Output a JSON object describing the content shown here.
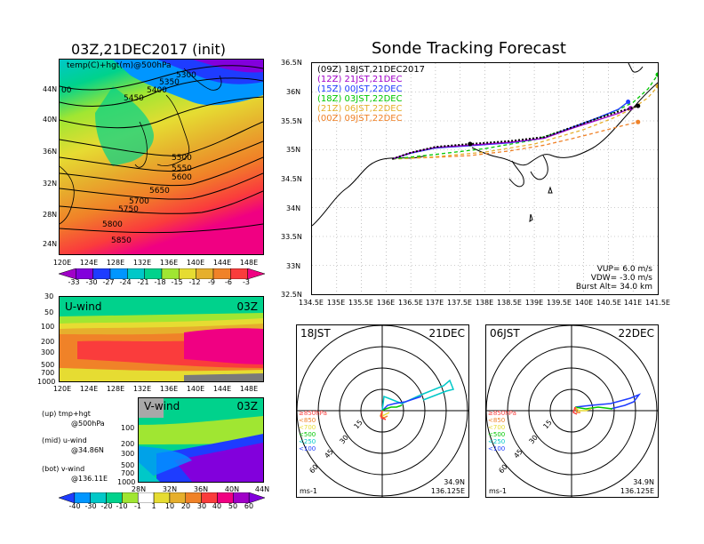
{
  "temp_panel": {
    "title": "03Z,21DEC2017 (init)",
    "subtitle": "temp(C)+hgt(m)@500hPa",
    "lat_labels": [
      "44N",
      "40N",
      "36N",
      "32N",
      "28N",
      "24N"
    ],
    "lon_labels": [
      "120E",
      "124E",
      "128E",
      "132E",
      "136E",
      "140E",
      "144E",
      "148E"
    ],
    "contours": [
      {
        "label": "5300"
      },
      {
        "label": "5350"
      },
      {
        "label": "5400"
      },
      {
        "label": "5450"
      },
      {
        "label": "5500"
      },
      {
        "label": "5550"
      },
      {
        "label": "5600"
      },
      {
        "label": "5650"
      },
      {
        "label": "5700"
      },
      {
        "label": "5750"
      },
      {
        "label": "5800"
      },
      {
        "label": "5850"
      }
    ],
    "edge_label": "00",
    "colorbar": {
      "labels": [
        "-33",
        "-30",
        "-27",
        "-24",
        "-21",
        "-18",
        "-15",
        "-12",
        "-9",
        "-6",
        "-3"
      ],
      "colors": [
        "#a000c8",
        "#8200dc",
        "#1e3cff",
        "#0096ff",
        "#00c8c8",
        "#00d28c",
        "#a0e632",
        "#e6dc32",
        "#e6af2d",
        "#f08228",
        "#fa3c3c",
        "#f00082"
      ]
    }
  },
  "uwind_panel": {
    "title": "U-wind",
    "time": "03Z",
    "p_labels": [
      "30",
      "50",
      "100",
      "200",
      "300",
      "500",
      "700",
      "1000"
    ],
    "lon_labels": [
      "120E",
      "124E",
      "128E",
      "132E",
      "136E",
      "140E",
      "144E",
      "148E"
    ]
  },
  "vwind_panel": {
    "title": "V-wind",
    "time": "03Z",
    "p_labels": [
      "100",
      "200",
      "300",
      "500",
      "700",
      "1000"
    ],
    "lat_labels": [
      "28N",
      "32N",
      "36N",
      "40N",
      "44N"
    ],
    "colorbar": {
      "labels": [
        "-40",
        "-30",
        "-20",
        "-10",
        "-1",
        "1",
        "10",
        "20",
        "30",
        "40",
        "50",
        "60"
      ],
      "colors": [
        "#1e3cff",
        "#0096ff",
        "#00c8c8",
        "#00d28c",
        "#a0e632",
        "#ffffff",
        "#e6dc32",
        "#e6af2d",
        "#f08228",
        "#fa3c3c",
        "#f00082",
        "#a000c8",
        "#8200dc"
      ]
    }
  },
  "legend_notes": [
    {
      "line1": "(up) tmp+hgt",
      "line2": "@500hPa"
    },
    {
      "line1": "(mid) u-wind",
      "line2": "@34.86N"
    },
    {
      "line1": "(bot) v-wind",
      "line2": "@136.11E"
    }
  ],
  "tracking": {
    "title": "Sonde Tracking Forecast",
    "lat_labels": [
      "36.5N",
      "36N",
      "35.5N",
      "35N",
      "34.5N",
      "34N",
      "33.5N",
      "33N",
      "32.5N"
    ],
    "lon_labels": [
      "134.5E",
      "135E",
      "135.5E",
      "136E",
      "136.5E",
      "137E",
      "137.5E",
      "138E",
      "138.5E",
      "139E",
      "139.5E",
      "140E",
      "140.5E",
      "141E",
      "141.5E"
    ],
    "runs": [
      {
        "label": "(09Z)  18JST,21DEC2017",
        "color": "#000000"
      },
      {
        "label": "(12Z)  21JST,21DEC",
        "color": "#a000c8"
      },
      {
        "label": "(15Z)  00JST,22DEC",
        "color": "#1e3cff"
      },
      {
        "label": "(18Z)  03JST,22DEC",
        "color": "#00c800"
      },
      {
        "label": "(21Z)  06JST,22DEC",
        "color": "#e6af2d"
      },
      {
        "label": "(00Z)  09JST,22DEC",
        "color": "#f08228"
      }
    ],
    "vup": "VUP=  6.0  m/s",
    "vdw": "VDW= -3.0  m/s",
    "burst": "Burst Alt=  34.0  km"
  },
  "polar_panels": [
    {
      "time": "18JST",
      "date": "21DEC",
      "unit": "ms-1",
      "lat": "34.9N",
      "lon": "136.125E",
      "ring_labels": [
        "15",
        "30",
        "45",
        "60"
      ]
    },
    {
      "time": "06JST",
      "date": "22DEC",
      "unit": "ms-1",
      "lat": "34.9N",
      "lon": "136.125E",
      "ring_labels": [
        "15",
        "30",
        "45",
        "60"
      ]
    }
  ],
  "polar_legend": [
    {
      "label": "≥850hPa",
      "color": "#fa3c3c"
    },
    {
      "label": "<850",
      "color": "#f08228"
    },
    {
      "label": "<700",
      "color": "#e6dc32"
    },
    {
      "label": "<500",
      "color": "#00c800"
    },
    {
      "label": "<250",
      "color": "#00c8c8"
    },
    {
      "label": "<100",
      "color": "#1e3cff"
    }
  ],
  "chart_data": [
    {
      "type": "heatmap",
      "title": "03Z,21DEC2017 (init)",
      "subtitle": "temp(C)+hgt(m)@500hPa",
      "xlim": [
        120,
        150
      ],
      "ylim": [
        22,
        47
      ],
      "contour_levels": [
        5300,
        5350,
        5400,
        5450,
        5500,
        5550,
        5600,
        5650,
        5700,
        5750,
        5800,
        5850
      ],
      "color_levels": [
        -33,
        -30,
        -27,
        -24,
        -21,
        -18,
        -15,
        -12,
        -9,
        -6,
        -3
      ]
    },
    {
      "type": "heatmap",
      "title": "U-wind",
      "xlim": [
        120,
        150
      ],
      "ylim": [
        1000,
        30
      ]
    },
    {
      "type": "heatmap",
      "title": "V-wind",
      "xlim": [
        28,
        44
      ],
      "ylim": [
        1000,
        100
      ],
      "color_levels": [
        -40,
        -30,
        -20,
        -10,
        -1,
        1,
        10,
        20,
        30,
        40,
        50,
        60
      ]
    },
    {
      "type": "line",
      "title": "Sonde Tracking Forecast",
      "xlim": [
        134.5,
        141.5
      ],
      "ylim": [
        32.5,
        36.5
      ],
      "series": [
        {
          "name": "(09Z)  18JST,21DEC2017",
          "x": [
            136.125,
            136.5,
            137.0,
            137.7,
            138.5,
            139.2,
            139.8,
            140.3,
            140.7,
            141.0,
            141.1
          ],
          "y": [
            34.84,
            34.95,
            35.05,
            35.1,
            35.15,
            35.22,
            35.4,
            35.55,
            35.66,
            35.73,
            35.76
          ]
        },
        {
          "name": "(12Z)  21JST,21DEC",
          "x": [
            136.125,
            136.5,
            137.0,
            137.7,
            138.5,
            139.2,
            139.8,
            140.3,
            140.7,
            140.95
          ],
          "y": [
            34.84,
            34.95,
            35.04,
            35.08,
            35.13,
            35.2,
            35.38,
            35.52,
            35.63,
            35.72
          ]
        },
        {
          "name": "(15Z)  00JST,22DEC",
          "x": [
            136.125,
            136.5,
            137.0,
            137.7,
            138.5,
            139.2,
            139.8,
            140.3,
            140.7,
            140.9
          ],
          "y": [
            34.84,
            34.94,
            35.03,
            35.07,
            35.12,
            35.2,
            35.4,
            35.56,
            35.7,
            35.83
          ]
        },
        {
          "name": "(18Z)  03JST,22DEC",
          "x": [
            136.125,
            137.0,
            138.0,
            139.0,
            140.0,
            140.6,
            141.0,
            141.3,
            141.5
          ],
          "y": [
            34.84,
            34.92,
            35.02,
            35.17,
            35.45,
            35.65,
            35.82,
            36.05,
            36.3
          ]
        },
        {
          "name": "(21Z)  06JST,22DEC",
          "x": [
            136.125,
            137.0,
            138.0,
            139.0,
            140.0,
            140.6,
            141.0,
            141.3,
            141.5
          ],
          "y": [
            34.84,
            34.88,
            34.96,
            35.1,
            35.35,
            35.55,
            35.72,
            35.9,
            36.1
          ]
        },
        {
          "name": "(00Z)  09JST,22DEC",
          "x": [
            136.125,
            137.0,
            137.7,
            138.5,
            139.2,
            139.8,
            140.4,
            140.8,
            141.1
          ],
          "y": [
            34.84,
            34.87,
            34.9,
            34.98,
            35.08,
            35.2,
            35.33,
            35.42,
            35.48
          ]
        }
      ]
    }
  ]
}
